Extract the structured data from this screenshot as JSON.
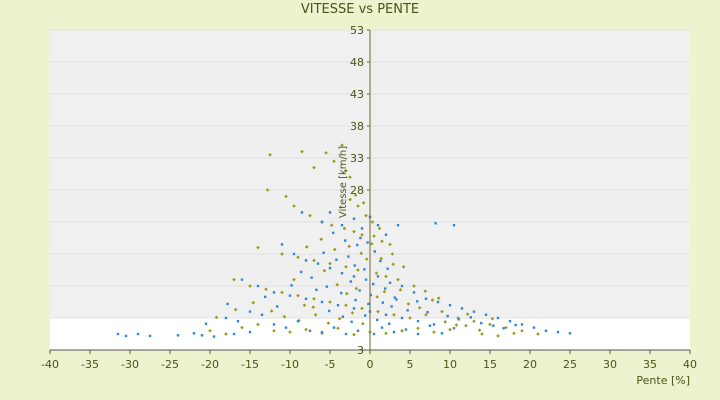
{
  "chart_data": {
    "type": "scatter",
    "title": "VITESSE vs PENTE",
    "xlabel": "Pente [%]",
    "ylabel": "Vitesse [km/h]",
    "xlim": [
      -40,
      40
    ],
    "ylim": [
      3,
      53
    ],
    "xticks": [
      -40,
      -35,
      -30,
      -25,
      -20,
      -15,
      -10,
      -5,
      0,
      5,
      10,
      15,
      20,
      25,
      30,
      35,
      40
    ],
    "yticks": [
      3,
      8,
      13,
      18,
      23,
      28,
      33,
      38,
      43,
      48,
      53
    ],
    "ytick_labels_shown": [
      "53",
      "48",
      "43",
      "38",
      "33",
      "28",
      "3"
    ],
    "banded_background": true,
    "series": [
      {
        "color": "#9a9a1a",
        "marker": "diamond",
        "points": [
          [
            -12.5,
            33.5
          ],
          [
            -8.5,
            34
          ],
          [
            -7,
            31.5
          ],
          [
            -5.5,
            33.8
          ],
          [
            -4.5,
            32.5
          ],
          [
            -3.5,
            35
          ],
          [
            -3,
            31
          ],
          [
            -2.5,
            30
          ],
          [
            -12.8,
            28
          ],
          [
            -10.5,
            27
          ],
          [
            -9.5,
            25.5
          ],
          [
            -7.5,
            24
          ],
          [
            -6,
            23
          ],
          [
            -4.8,
            22.5
          ],
          [
            -3.2,
            22
          ],
          [
            -2,
            21.5
          ],
          [
            -1,
            21
          ],
          [
            0.5,
            20.8
          ],
          [
            1.5,
            20
          ],
          [
            2.5,
            19.5
          ],
          [
            -14,
            19
          ],
          [
            -11,
            18
          ],
          [
            -9,
            17.5
          ],
          [
            -7,
            17
          ],
          [
            -5,
            16.5
          ],
          [
            -3,
            16
          ],
          [
            -1.5,
            15.5
          ],
          [
            0.8,
            15
          ],
          [
            2,
            14.5
          ],
          [
            3.5,
            14
          ],
          [
            -17,
            14
          ],
          [
            -15,
            13
          ],
          [
            -13,
            12.5
          ],
          [
            -11,
            12
          ],
          [
            -9,
            11.5
          ],
          [
            -7,
            11
          ],
          [
            -5,
            10.5
          ],
          [
            -3,
            10
          ],
          [
            -1,
            9.5
          ],
          [
            1,
            9
          ],
          [
            3,
            8.5
          ],
          [
            5,
            8
          ],
          [
            7,
            8.5
          ],
          [
            9,
            9
          ],
          [
            11,
            8
          ],
          [
            13,
            7.5
          ],
          [
            15,
            7
          ],
          [
            17,
            6.5
          ],
          [
            19,
            6
          ],
          [
            21,
            5.5
          ],
          [
            -20,
            6
          ],
          [
            -18,
            5.5
          ],
          [
            -16,
            6.5
          ],
          [
            -14,
            7
          ],
          [
            -12,
            6
          ],
          [
            -10,
            5.8
          ],
          [
            -8,
            6.2
          ],
          [
            -6,
            5.6
          ],
          [
            -4,
            6.4
          ],
          [
            -2,
            5.4
          ],
          [
            0,
            5.8
          ],
          [
            2,
            5.6
          ],
          [
            4,
            6
          ],
          [
            6,
            6.4
          ],
          [
            8,
            5.8
          ],
          [
            10,
            6.2
          ],
          [
            12,
            6.8
          ],
          [
            14,
            5.5
          ],
          [
            16,
            5.2
          ],
          [
            18,
            5.6
          ],
          [
            -1.5,
            25.5
          ],
          [
            -0.5,
            24
          ],
          [
            0.3,
            23
          ],
          [
            1.2,
            22
          ],
          [
            -2.5,
            26.5
          ],
          [
            -1.8,
            27.2
          ],
          [
            -0.8,
            26
          ],
          [
            2.8,
            18
          ],
          [
            4.2,
            16
          ],
          [
            5.5,
            13
          ],
          [
            -9.5,
            14
          ],
          [
            -8.2,
            10
          ],
          [
            -6.8,
            8.5
          ],
          [
            -5.2,
            7.2
          ],
          [
            -4.1,
            13.2
          ],
          [
            -2.9,
            11.8
          ],
          [
            -1.7,
            12.6
          ],
          [
            -0.4,
            17.2
          ],
          [
            0.9,
            11.3
          ],
          [
            1.8,
            12.1
          ],
          [
            4.8,
            10.2
          ],
          [
            6.2,
            9.6
          ],
          [
            7.8,
            10.8
          ],
          [
            9.4,
            7.4
          ],
          [
            10.8,
            6.9
          ],
          [
            12.2,
            8.6
          ],
          [
            13.7,
            6.1
          ],
          [
            15.3,
            7.9
          ],
          [
            6.9,
            12.2
          ],
          [
            8.6,
            11.1
          ],
          [
            -6.1,
            20.3
          ],
          [
            -4.4,
            18.7
          ],
          [
            -2.6,
            19.2
          ],
          [
            -1.1,
            18.1
          ],
          [
            0.2,
            19.6
          ],
          [
            1.4,
            17.3
          ],
          [
            2.9,
            16.4
          ],
          [
            3.8,
            12.4
          ],
          [
            -7.9,
            19.1
          ],
          [
            -5.7,
            15.4
          ],
          [
            -19.2,
            8.1
          ],
          [
            -16.8,
            9.3
          ],
          [
            -14.6,
            10.4
          ],
          [
            -12.3,
            9.1
          ],
          [
            -10.7,
            8.2
          ],
          [
            -8.9,
            7.6
          ],
          [
            -7.1,
            9.7
          ],
          [
            -3.8,
            7.9
          ],
          [
            -2.2,
            8.8
          ],
          [
            -0.9,
            7.1
          ]
        ]
      },
      {
        "color": "#2e86d8",
        "marker": "square",
        "points": [
          [
            -31.5,
            5.5
          ],
          [
            -30.5,
            5.2
          ],
          [
            -29,
            5.5
          ],
          [
            -27.5,
            5.2
          ],
          [
            -24,
            5.3
          ],
          [
            -22,
            5.6
          ],
          [
            -21,
            5.3
          ],
          [
            -19.5,
            5.1
          ],
          [
            -17,
            5.5
          ],
          [
            -15,
            5.8
          ],
          [
            -8.5,
            24.5
          ],
          [
            -6,
            23
          ],
          [
            -5,
            24.5
          ],
          [
            -3.5,
            22.5
          ],
          [
            -2,
            23.5
          ],
          [
            -1,
            22
          ],
          [
            0,
            23.8
          ],
          [
            1,
            22.5
          ],
          [
            2,
            21
          ],
          [
            3.5,
            22.5
          ],
          [
            8.2,
            22.8
          ],
          [
            10.5,
            22.5
          ],
          [
            -11,
            19.5
          ],
          [
            -9.5,
            18
          ],
          [
            -8,
            17
          ],
          [
            -6.5,
            16.5
          ],
          [
            -5,
            15.8
          ],
          [
            -3.5,
            15
          ],
          [
            -2,
            14.5
          ],
          [
            -0.5,
            14
          ],
          [
            1,
            14.5
          ],
          [
            2.5,
            13.5
          ],
          [
            4,
            13
          ],
          [
            5.5,
            12
          ],
          [
            7,
            11
          ],
          [
            8.5,
            10.5
          ],
          [
            10,
            10
          ],
          [
            11.5,
            9.5
          ],
          [
            13,
            9
          ],
          [
            14.5,
            8.5
          ],
          [
            16,
            8
          ],
          [
            17.5,
            7.5
          ],
          [
            19,
            7
          ],
          [
            20.5,
            6.5
          ],
          [
            22,
            6
          ],
          [
            23.5,
            5.8
          ],
          [
            25,
            5.6
          ],
          [
            -16,
            14
          ],
          [
            -14,
            13
          ],
          [
            -12,
            12
          ],
          [
            -10,
            11.5
          ],
          [
            -8,
            11
          ],
          [
            -6,
            10.5
          ],
          [
            -4,
            10
          ],
          [
            -2,
            9.5
          ],
          [
            0,
            9
          ],
          [
            2,
            8.5
          ],
          [
            4,
            8
          ],
          [
            6,
            7.5
          ],
          [
            8,
            7
          ],
          [
            -18,
            8
          ],
          [
            -16.5,
            7.5
          ],
          [
            -15,
            9
          ],
          [
            -13.5,
            8.5
          ],
          [
            -12,
            7
          ],
          [
            -10.5,
            6.5
          ],
          [
            -9,
            7.5
          ],
          [
            -7.5,
            6
          ],
          [
            -6,
            5.8
          ],
          [
            -4.5,
            6.5
          ],
          [
            -3,
            5.5
          ],
          [
            -1.5,
            6
          ],
          [
            0.5,
            5.5
          ],
          [
            1.5,
            6.5
          ],
          [
            3,
            5.8
          ],
          [
            4.5,
            6.2
          ],
          [
            6,
            5.5
          ],
          [
            7.5,
            6.8
          ],
          [
            9,
            5.6
          ],
          [
            10.5,
            6.4
          ],
          [
            -1.2,
            20.5
          ],
          [
            -0.3,
            19.8
          ],
          [
            0.6,
            18.4
          ],
          [
            1.3,
            16.9
          ],
          [
            -2.7,
            17.6
          ],
          [
            -1.9,
            16.2
          ],
          [
            -0.7,
            15.6
          ],
          [
            0.4,
            13.3
          ],
          [
            2.2,
            15.7
          ],
          [
            3.1,
            11.2
          ],
          [
            -4.6,
            21.3
          ],
          [
            -3.1,
            20.1
          ],
          [
            -1.6,
            19.4
          ],
          [
            -5.8,
            18.2
          ],
          [
            -4.2,
            17.1
          ],
          [
            -2.4,
            13.7
          ],
          [
            -1.3,
            12.3
          ],
          [
            0.1,
            11.6
          ],
          [
            1.6,
            10.4
          ],
          [
            2.7,
            9.8
          ],
          [
            -7.3,
            14.3
          ],
          [
            -5.4,
            12.9
          ],
          [
            -3.6,
            11.9
          ],
          [
            -1.8,
            10.8
          ],
          [
            -0.2,
            10.2
          ],
          [
            1.9,
            12.6
          ],
          [
            3.3,
            10.9
          ],
          [
            4.7,
            9.2
          ],
          [
            5.9,
            10.6
          ],
          [
            7.2,
            8.9
          ],
          [
            9.7,
            8.3
          ],
          [
            11.1,
            7.8
          ],
          [
            12.6,
            8.1
          ],
          [
            13.9,
            7.2
          ],
          [
            15.4,
            6.8
          ],
          [
            16.7,
            6.4
          ],
          [
            18.2,
            6.9
          ],
          [
            -20.5,
            7.1
          ],
          [
            -17.8,
            10.2
          ],
          [
            -13.1,
            11.3
          ],
          [
            -11.6,
            9.8
          ],
          [
            -9.8,
            13.1
          ],
          [
            -8.6,
            15.2
          ],
          [
            -6.7,
            12.4
          ],
          [
            -5.1,
            9.1
          ],
          [
            -3.4,
            8.2
          ],
          [
            -2.3,
            7.4
          ],
          [
            -0.6,
            8.4
          ],
          [
            0.9,
            7.7
          ],
          [
            2.4,
            7.1
          ]
        ]
      }
    ]
  }
}
